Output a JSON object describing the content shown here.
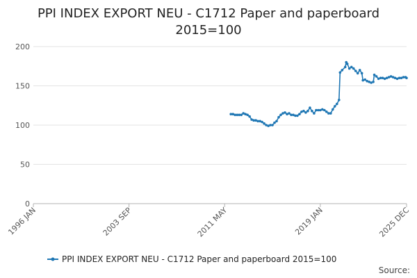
{
  "title_line1": "PPI INDEX EXPORT NEU - C1712 Paper and paperboard",
  "title_line2": "2015=100",
  "source_label": "Source:",
  "chart_data": {
    "type": "line",
    "title": "PPI INDEX EXPORT NEU - C1712 Paper and paperboard 2015=100",
    "xlabel": "",
    "ylabel": "",
    "ylim": [
      0,
      200
    ],
    "yticks": [
      0,
      50,
      100,
      150,
      200
    ],
    "xlim": [
      "1996-01",
      "2025-12"
    ],
    "xticks": [
      "1996 JAN",
      "2003 SEP",
      "2011 MAY",
      "2019 JAN",
      "2025 DEC"
    ],
    "grid": "horizontal",
    "legend_position": "bottom",
    "series": [
      {
        "name": "PPI INDEX EXPORT NEU - C1712 Paper and paperboard 2015=100",
        "color": "#1f77b4",
        "points": [
          [
            "2011-11",
            114
          ],
          [
            "2012-01",
            114
          ],
          [
            "2012-03",
            113
          ],
          [
            "2012-05",
            113
          ],
          [
            "2012-07",
            113
          ],
          [
            "2012-09",
            113
          ],
          [
            "2012-11",
            115
          ],
          [
            "2013-01",
            114
          ],
          [
            "2013-03",
            113
          ],
          [
            "2013-05",
            111
          ],
          [
            "2013-07",
            107
          ],
          [
            "2013-09",
            106
          ],
          [
            "2013-11",
            106
          ],
          [
            "2014-01",
            105
          ],
          [
            "2014-03",
            105
          ],
          [
            "2014-05",
            104
          ],
          [
            "2014-07",
            102
          ],
          [
            "2014-09",
            100
          ],
          [
            "2014-11",
            99
          ],
          [
            "2015-01",
            100
          ],
          [
            "2015-03",
            100
          ],
          [
            "2015-05",
            103
          ],
          [
            "2015-07",
            105
          ],
          [
            "2015-09",
            110
          ],
          [
            "2015-11",
            113
          ],
          [
            "2016-01",
            115
          ],
          [
            "2016-03",
            116
          ],
          [
            "2016-05",
            114
          ],
          [
            "2016-07",
            115
          ],
          [
            "2016-09",
            113
          ],
          [
            "2016-11",
            113
          ],
          [
            "2017-01",
            112
          ],
          [
            "2017-03",
            112
          ],
          [
            "2017-05",
            114
          ],
          [
            "2017-07",
            117
          ],
          [
            "2017-09",
            118
          ],
          [
            "2017-11",
            116
          ],
          [
            "2018-01",
            118
          ],
          [
            "2018-03",
            122
          ],
          [
            "2018-05",
            118
          ],
          [
            "2018-07",
            115
          ],
          [
            "2018-09",
            119
          ],
          [
            "2018-11",
            119
          ],
          [
            "2019-01",
            119
          ],
          [
            "2019-03",
            120
          ],
          [
            "2019-05",
            119
          ],
          [
            "2019-07",
            117
          ],
          [
            "2019-09",
            115
          ],
          [
            "2019-11",
            115
          ],
          [
            "2020-01",
            120
          ],
          [
            "2020-03",
            124
          ],
          [
            "2020-05",
            127
          ],
          [
            "2020-07",
            132
          ],
          [
            "2020-08",
            167
          ],
          [
            "2020-10",
            170
          ],
          [
            "2021-01",
            174
          ],
          [
            "2021-02",
            180
          ],
          [
            "2021-03",
            178
          ],
          [
            "2021-05",
            172
          ],
          [
            "2021-07",
            174
          ],
          [
            "2021-09",
            172
          ],
          [
            "2021-11",
            169
          ],
          [
            "2022-01",
            166
          ],
          [
            "2022-03",
            170
          ],
          [
            "2022-05",
            166
          ],
          [
            "2022-06",
            157
          ],
          [
            "2022-08",
            158
          ],
          [
            "2022-10",
            156
          ],
          [
            "2022-12",
            155
          ],
          [
            "2023-02",
            154
          ],
          [
            "2023-04",
            155
          ],
          [
            "2023-05",
            164
          ],
          [
            "2023-07",
            162
          ],
          [
            "2023-09",
            159
          ],
          [
            "2023-11",
            160
          ],
          [
            "2024-01",
            160
          ],
          [
            "2024-03",
            159
          ],
          [
            "2024-05",
            160
          ],
          [
            "2024-07",
            161
          ],
          [
            "2024-09",
            162
          ],
          [
            "2024-11",
            161
          ],
          [
            "2025-01",
            160
          ],
          [
            "2025-03",
            159
          ],
          [
            "2025-05",
            160
          ],
          [
            "2025-07",
            160
          ],
          [
            "2025-09",
            161
          ],
          [
            "2025-11",
            161
          ],
          [
            "2025-12",
            160
          ]
        ]
      }
    ]
  }
}
